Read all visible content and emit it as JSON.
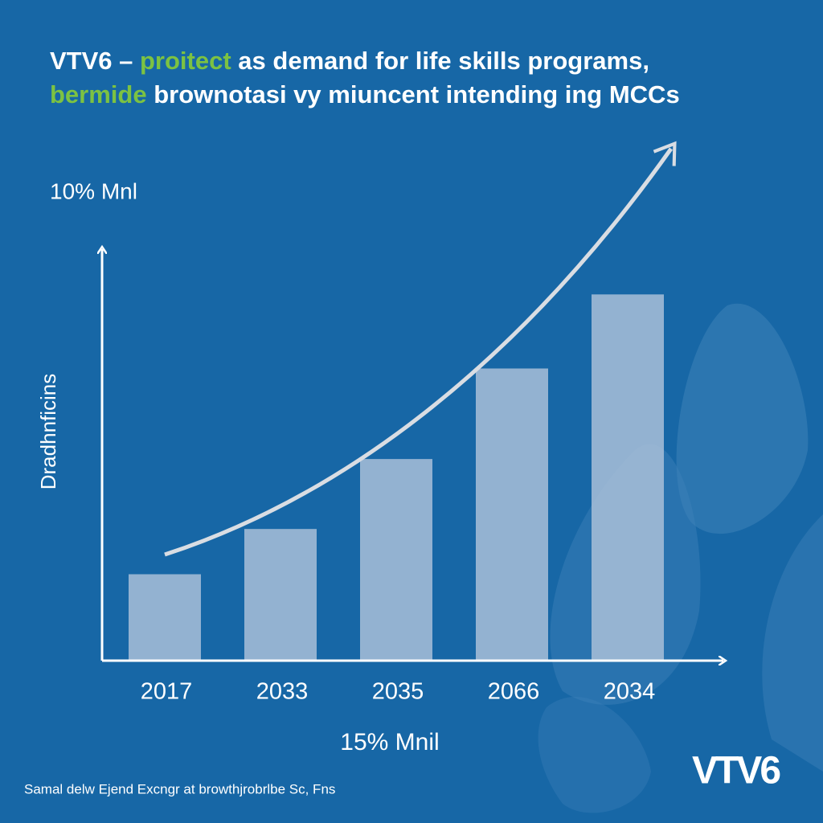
{
  "chart_data": {
    "type": "bar",
    "title_lines": [
      [
        {
          "text": "VTV6 – ",
          "highlight": false
        },
        {
          "text": "proitect",
          "highlight": true
        },
        {
          "text": " as demand for life skills programs,",
          "highlight": false
        }
      ],
      [
        {
          "text": "bermide",
          "highlight": true
        },
        {
          "text": " brownotasi vy miuncent intending ing MCCs",
          "highlight": false
        }
      ]
    ],
    "highlight_color": "#7cc242",
    "top_label": "10% Mnl",
    "y_label": "Dradhnficins",
    "x_label": "15% Mnil",
    "footer": "Samal delw Ejend Excngr at browthjrobrlbe Sc, Fns",
    "logo": "VTV6",
    "categories": [
      "2017",
      "2033",
      "2035",
      "2066",
      "2034"
    ],
    "values": [
      21,
      32,
      49,
      71,
      89
    ],
    "color": "#a9bfd8",
    "ylim": [
      0,
      100
    ]
  }
}
